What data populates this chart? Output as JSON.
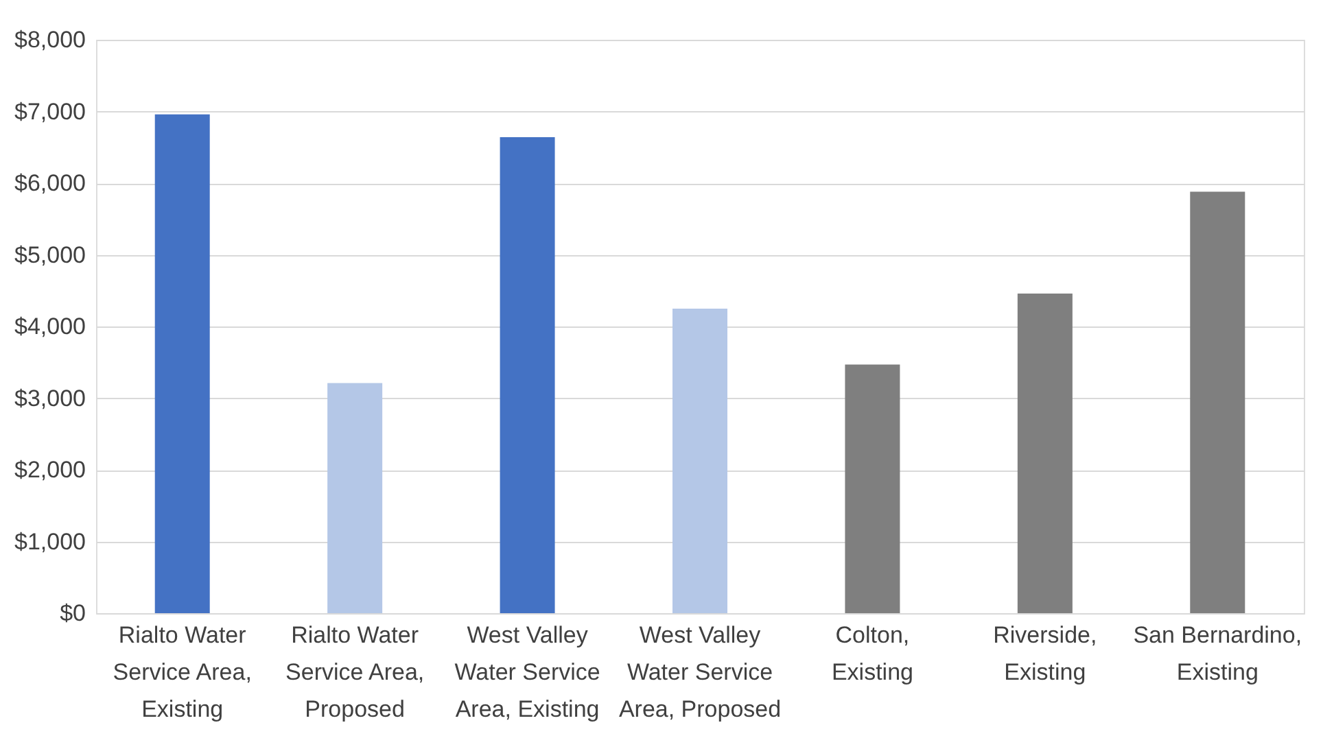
{
  "chart_data": {
    "type": "bar",
    "categories": [
      "Rialto Water Service Area, Existing",
      "Rialto Water Service Area, Proposed",
      "West Valley Water Service Area, Existing",
      "West Valley Water Service Area, Proposed",
      "Colton, Existing",
      "Riverside, Existing",
      "San Bernardino, Existing"
    ],
    "values": [
      6960,
      3210,
      6640,
      4250,
      3470,
      4460,
      5880
    ],
    "colors": [
      "#4472c4",
      "#b4c7e7",
      "#4472c4",
      "#b4c7e7",
      "#7f7f7f",
      "#7f7f7f",
      "#7f7f7f"
    ],
    "ylim": [
      0,
      8000
    ],
    "yticks": [
      {
        "value": 0,
        "label": "$0"
      },
      {
        "value": 1000,
        "label": "$1,000"
      },
      {
        "value": 2000,
        "label": "$2,000"
      },
      {
        "value": 3000,
        "label": "$3,000"
      },
      {
        "value": 4000,
        "label": "$4,000"
      },
      {
        "value": 5000,
        "label": "$5,000"
      },
      {
        "value": 6000,
        "label": "$6,000"
      },
      {
        "value": 7000,
        "label": "$7,000"
      },
      {
        "value": 8000,
        "label": "$8,000"
      }
    ],
    "grid": "y"
  }
}
